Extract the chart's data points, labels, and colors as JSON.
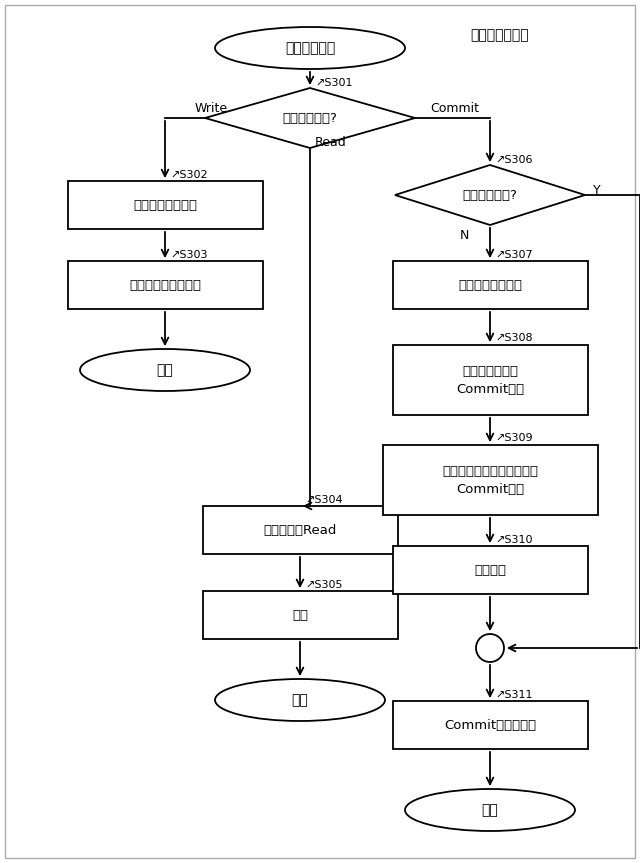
{
  "bg_color": "#ffffff",
  "title": "アクセス受付部",
  "start_text": "要求処理開始",
  "s301_text": "アクセス種別?",
  "s302_text": "メモリへ書き込み",
  "s303_text": "バッファへ書き込み",
  "end1_text": "終了",
  "s304_text": "メモリからRead",
  "s305_text": "応答",
  "end2_text": "終了",
  "s306_text": "バッファが空?",
  "s307_text": "バッファ掛き出し",
  "s308_text": "メモリに対して\nCommit処理",
  "s309_text": "他の二重化受付部に対して\nCommit処理",
  "s310_text": "完了待ち",
  "s311_text": "Commit完了を通知",
  "end3_text": "終了",
  "write_label": "Write",
  "read_label": "Read",
  "commit_label": "Commit",
  "y_label": "Y",
  "n_label": "N"
}
